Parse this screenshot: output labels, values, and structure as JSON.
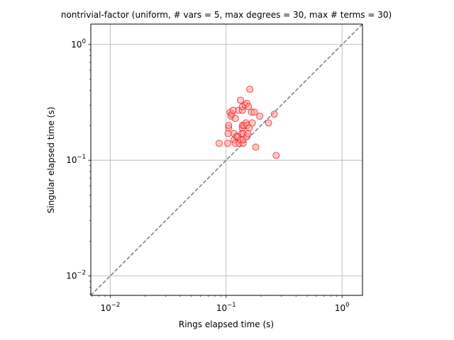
{
  "chart_data": {
    "type": "scatter",
    "title": "nontrivial-factor (uniform, # vars = 5, max degrees = 30, max # terms = 30)",
    "xlabel": "Rings elapsed time (s)",
    "ylabel": "Singular elapsed time (s)",
    "xscale": "log",
    "yscale": "log",
    "xlim": [
      0.0068,
      1.5
    ],
    "ylim": [
      0.0068,
      1.5
    ],
    "grid": true,
    "reference_line": "y = x",
    "xticks": [
      {
        "value": 0.01,
        "base": "10",
        "exp": "−2"
      },
      {
        "value": 0.1,
        "base": "10",
        "exp": "−1"
      },
      {
        "value": 1,
        "base": "10",
        "exp": "0"
      }
    ],
    "yticks": [
      {
        "value": 0.01,
        "base": "10",
        "exp": "−2"
      },
      {
        "value": 0.1,
        "base": "10",
        "exp": "−1"
      },
      {
        "value": 1,
        "base": "10",
        "exp": "0"
      }
    ],
    "colors": {
      "marker_fill": "#ff9a9a",
      "marker_edge": "#e8191e",
      "reference_line": "#7f7f7f",
      "grid": "#b0b0b0"
    },
    "series": [
      {
        "points": [
          [
            0.087,
            0.14
          ],
          [
            0.103,
            0.14
          ],
          [
            0.104,
            0.17
          ],
          [
            0.105,
            0.19
          ],
          [
            0.105,
            0.2
          ],
          [
            0.108,
            0.26
          ],
          [
            0.11,
            0.24
          ],
          [
            0.112,
            0.25
          ],
          [
            0.115,
            0.27
          ],
          [
            0.117,
            0.15
          ],
          [
            0.117,
            0.17
          ],
          [
            0.12,
            0.14
          ],
          [
            0.12,
            0.23
          ],
          [
            0.123,
            0.16
          ],
          [
            0.126,
            0.16
          ],
          [
            0.128,
            0.27
          ],
          [
            0.13,
            0.14
          ],
          [
            0.133,
            0.33
          ],
          [
            0.133,
            0.15
          ],
          [
            0.136,
            0.17
          ],
          [
            0.138,
            0.19
          ],
          [
            0.138,
            0.2
          ],
          [
            0.138,
            0.27
          ],
          [
            0.138,
            0.29
          ],
          [
            0.14,
            0.14
          ],
          [
            0.14,
            0.15
          ],
          [
            0.14,
            0.17
          ],
          [
            0.142,
            0.2
          ],
          [
            0.146,
            0.3
          ],
          [
            0.148,
            0.21
          ],
          [
            0.151,
            0.31
          ],
          [
            0.151,
            0.16
          ],
          [
            0.152,
            0.2
          ],
          [
            0.154,
            0.17
          ],
          [
            0.156,
            0.29
          ],
          [
            0.158,
            0.19
          ],
          [
            0.16,
            0.41
          ],
          [
            0.166,
            0.26
          ],
          [
            0.168,
            0.21
          ],
          [
            0.175,
            0.26
          ],
          [
            0.18,
            0.13
          ],
          [
            0.195,
            0.24
          ],
          [
            0.232,
            0.21
          ],
          [
            0.26,
            0.25
          ],
          [
            0.27,
            0.11
          ]
        ]
      }
    ]
  }
}
